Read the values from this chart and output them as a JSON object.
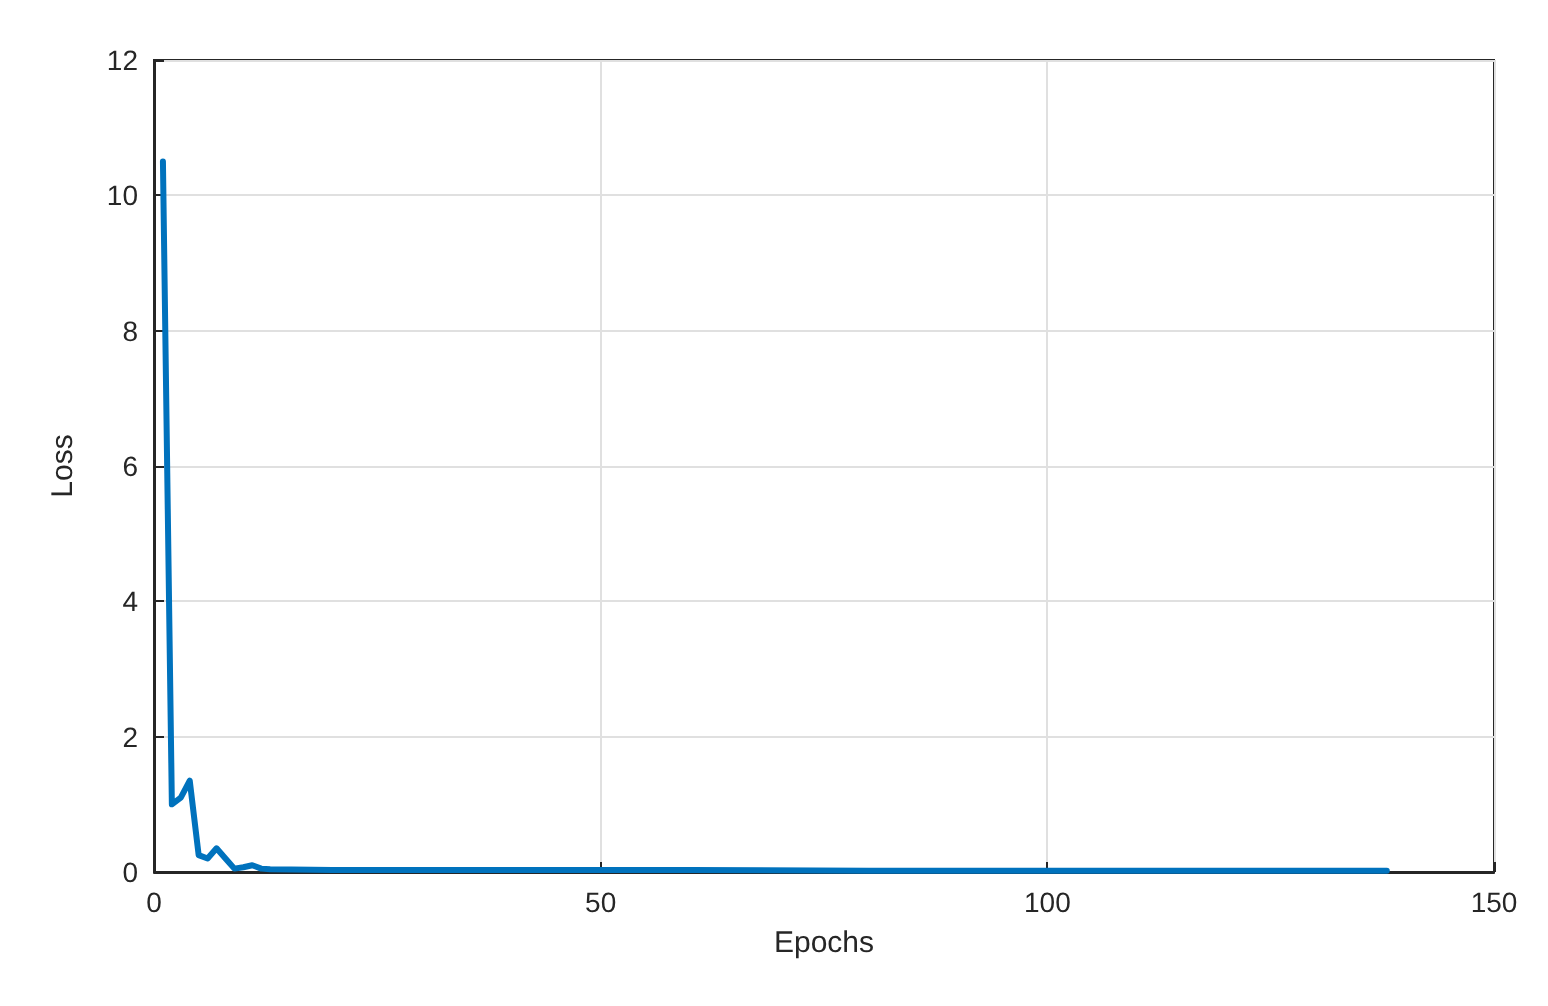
{
  "chart_data": {
    "type": "line",
    "xlabel": "Epochs",
    "ylabel": "Loss",
    "x": [
      1,
      2,
      3,
      4,
      5,
      6,
      7,
      8,
      9,
      10,
      11,
      12,
      13,
      20,
      40,
      60,
      80,
      100,
      120,
      138
    ],
    "series": [
      {
        "color": "#0072bd",
        "values": [
          10.5,
          1.0,
          1.1,
          1.35,
          0.25,
          0.2,
          0.35,
          0.2,
          0.05,
          0.07,
          0.1,
          0.05,
          0.04,
          0.03,
          0.03,
          0.03,
          0.02,
          0.02,
          0.02,
          0.02
        ]
      }
    ],
    "xlim": [
      0,
      150
    ],
    "xticks": [
      0,
      50,
      100,
      150
    ],
    "ylim": [
      0,
      12
    ],
    "yticks": [
      0,
      2,
      4,
      6,
      8,
      10,
      12
    ],
    "grid": true,
    "marker": "none",
    "line_style": "solid"
  }
}
